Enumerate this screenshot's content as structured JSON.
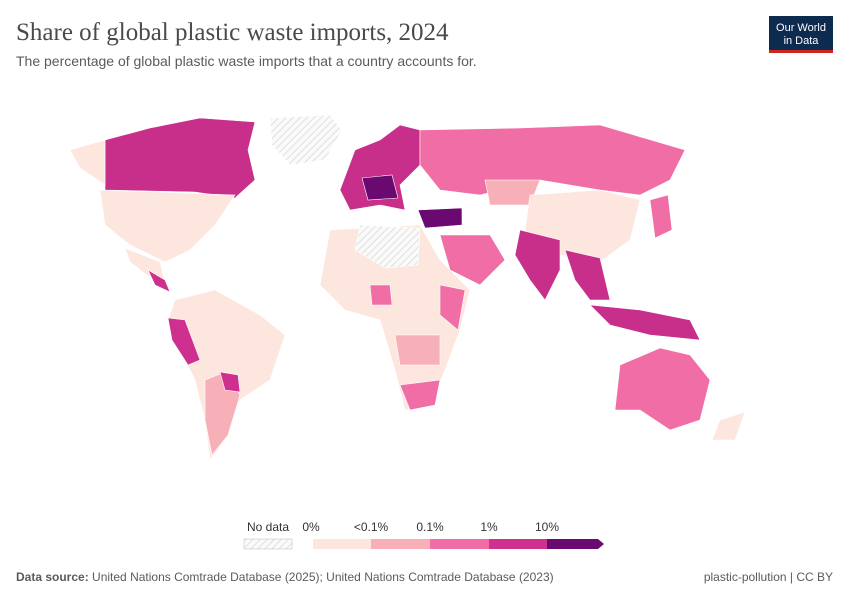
{
  "header": {
    "title": "Share of global plastic waste imports, 2024",
    "subtitle": "The percentage of global plastic waste imports that a country accounts for."
  },
  "logo": {
    "line1": "Our World",
    "line2": "in Data"
  },
  "legend": {
    "no_data": "No data",
    "bins": [
      "0%",
      "<0.1%",
      "0.1%",
      "1%",
      "10%"
    ]
  },
  "footer": {
    "source_label": "Data source:",
    "source": "United Nations Comtrade Database (2025); United Nations Comtrade Database (2023)",
    "slug": "plastic-pollution | CC BY"
  }
}
